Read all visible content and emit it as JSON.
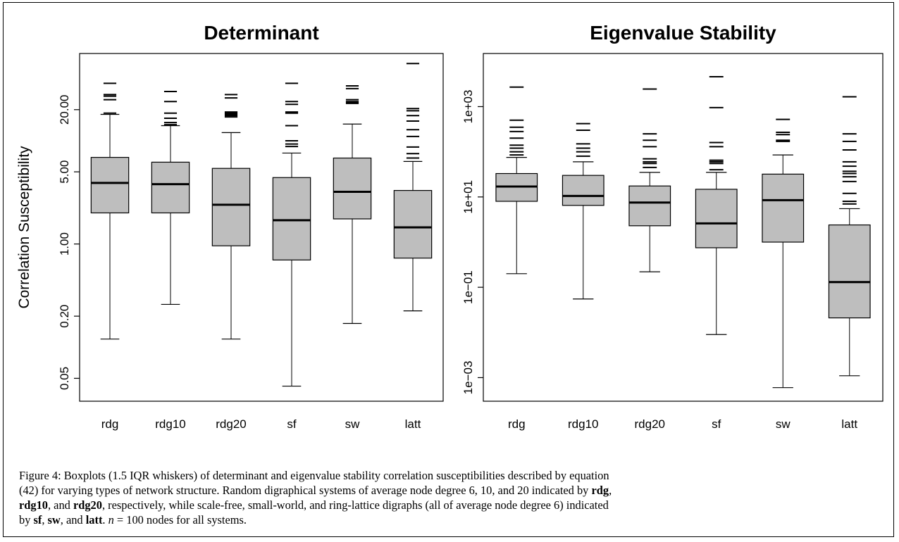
{
  "chart_data": [
    {
      "type": "boxplot",
      "title": "Determinant",
      "ylabel": "Correlation Susceptibility",
      "yscale": "log",
      "ylim": [
        0.03,
        70
      ],
      "yticks": [
        0.05,
        0.2,
        1.0,
        5.0,
        20.0
      ],
      "ytick_labels": [
        "0.05",
        "0.20",
        "1.00",
        "5.00",
        "20.00"
      ],
      "grid": false,
      "categories": [
        "rdg",
        "rdg10",
        "rdg20",
        "sf",
        "sw",
        "latt"
      ],
      "boxes": [
        {
          "category": "rdg",
          "whisker_low": 0.12,
          "q1": 2.0,
          "median": 3.9,
          "q3": 6.9,
          "whisker_high": 18.0,
          "outliers": [
            18.5,
            25,
            27,
            28,
            36
          ]
        },
        {
          "category": "rdg10",
          "whisker_low": 0.26,
          "q1": 2.0,
          "median": 3.8,
          "q3": 6.2,
          "whisker_high": 14.0,
          "outliers": [
            14.3,
            15,
            16.5,
            18.5,
            24,
            30
          ]
        },
        {
          "category": "rdg20",
          "whisker_low": 0.12,
          "q1": 0.96,
          "median": 2.4,
          "q3": 5.4,
          "whisker_high": 12.0,
          "outliers": [
            17,
            17.5,
            18,
            18.5,
            19,
            26,
            28
          ]
        },
        {
          "category": "sf",
          "whisker_low": 0.042,
          "q1": 0.7,
          "median": 1.7,
          "q3": 4.4,
          "whisker_high": 7.6,
          "outliers": [
            8.8,
            9.3,
            10,
            14,
            18.5,
            19,
            22.5,
            24,
            36
          ]
        },
        {
          "category": "sw",
          "whisker_low": 0.17,
          "q1": 1.75,
          "median": 3.2,
          "q3": 6.8,
          "whisker_high": 14.5,
          "outliers": [
            23,
            23.5,
            24,
            25,
            32,
            34
          ]
        },
        {
          "category": "latt",
          "whisker_low": 0.225,
          "q1": 0.73,
          "median": 1.45,
          "q3": 3.3,
          "whisker_high": 6.3,
          "outliers": [
            6.8,
            7.5,
            8.7,
            11,
            12.8,
            15.5,
            17.5,
            19.5,
            20.5,
            56
          ]
        }
      ]
    },
    {
      "type": "boxplot",
      "title": "Eigenvalue Stability",
      "ylabel": "",
      "yscale": "log",
      "ylim": [
        0.0003,
        15000
      ],
      "yticks": [
        0.001,
        0.1,
        10,
        1000
      ],
      "ytick_labels": [
        "1e−03",
        "1e−01",
        "1e+01",
        "1e+03"
      ],
      "grid": false,
      "categories": [
        "rdg",
        "rdg10",
        "rdg20",
        "sf",
        "sw",
        "latt"
      ],
      "boxes": [
        {
          "category": "rdg",
          "whisker_low": 0.2,
          "q1": 8,
          "median": 17,
          "q3": 33,
          "whisker_high": 75,
          "outliers": [
            85,
            100,
            120,
            140,
            200,
            280,
            350,
            500,
            2700
          ]
        },
        {
          "category": "rdg10",
          "whisker_low": 0.055,
          "q1": 6.5,
          "median": 10.5,
          "q3": 30,
          "whisker_high": 60,
          "outliers": [
            80,
            100,
            120,
            150,
            300,
            420
          ]
        },
        {
          "category": "rdg20",
          "whisker_low": 0.22,
          "q1": 2.3,
          "median": 7.5,
          "q3": 17.5,
          "whisker_high": 35,
          "outliers": [
            45,
            55,
            60,
            70,
            130,
            180,
            250,
            2450
          ]
        },
        {
          "category": "sf",
          "whisker_low": 0.009,
          "q1": 0.75,
          "median": 2.6,
          "q3": 14.8,
          "whisker_high": 35,
          "outliers": [
            40,
            55,
            60,
            65,
            130,
            160,
            950,
            4600
          ]
        },
        {
          "category": "sw",
          "whisker_low": 0.0006,
          "q1": 1.0,
          "median": 8.5,
          "q3": 32,
          "whisker_high": 85,
          "outliers": [
            170,
            180,
            240,
            270,
            520
          ]
        },
        {
          "category": "latt",
          "whisker_low": 0.0011,
          "q1": 0.021,
          "median": 0.13,
          "q3": 2.4,
          "whisker_high": 5.5,
          "outliers": [
            7,
            8,
            12,
            22,
            28,
            33,
            37,
            48,
            60,
            110,
            170,
            250,
            1650
          ]
        }
      ]
    }
  ],
  "caption": {
    "l1": "Figure 4: Boxplots (1.5 IQR whiskers) of determinant and eigenvalue stability correlation susceptibilities described by equation",
    "l2a": "(42) for varying types of network structure. Random digraphical systems of average node degree 6, 10, and 20 indicated by ",
    "l2b": "rdg",
    "l2c": ",",
    "l3a": "rdg10",
    "l3b": ", and ",
    "l3c": "rdg20",
    "l3d": ", respectively, while scale-free, small-world, and ring-lattice digraphs (all of average node degree 6) indicated",
    "l4a": "by ",
    "l4b": "sf",
    "l4c": ", ",
    "l4d": "sw",
    "l4e": ", and ",
    "l4f": "latt",
    "l4g": ". ",
    "l4h": "n",
    "l4i": " = 100 nodes for all systems."
  }
}
